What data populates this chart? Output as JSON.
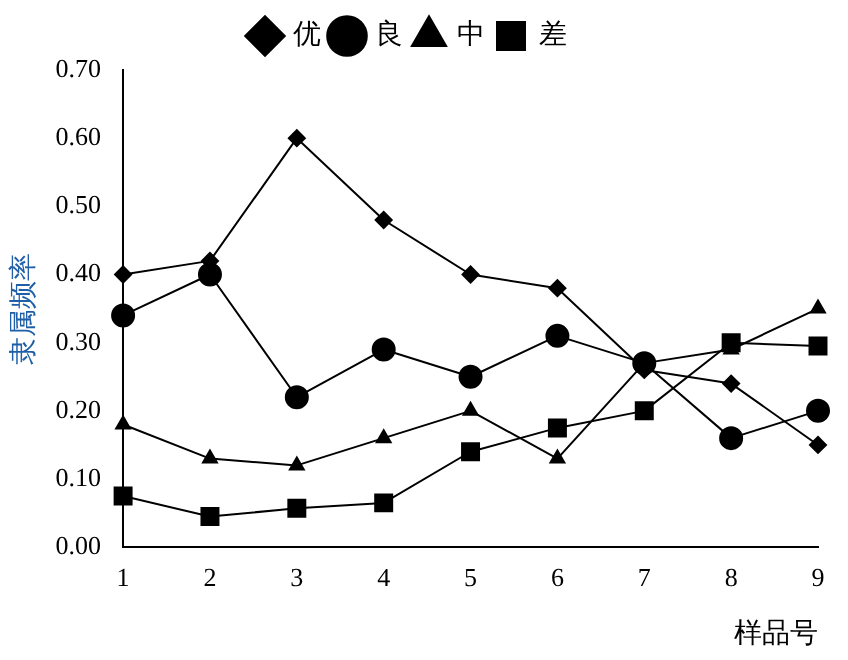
{
  "chart_data": {
    "type": "line",
    "xlabel": "样品号",
    "ylabel": "隶属频率",
    "categories": [
      "1",
      "2",
      "3",
      "4",
      "5",
      "6",
      "7",
      "8",
      "9"
    ],
    "series": [
      {
        "name": "优",
        "color": "#000000",
        "marker": "diamond",
        "values": [
          0.4,
          0.42,
          0.6,
          0.48,
          0.4,
          0.38,
          0.26,
          0.24,
          0.15
        ]
      },
      {
        "name": "良",
        "color": "#000000",
        "marker": "circle",
        "values": [
          0.34,
          0.4,
          0.22,
          0.29,
          0.25,
          0.31,
          0.27,
          0.16,
          0.2
        ]
      },
      {
        "name": "中",
        "color": "#000000",
        "marker": "triangle",
        "values": [
          0.18,
          0.13,
          0.12,
          0.16,
          0.2,
          0.13,
          0.27,
          0.29,
          0.35
        ]
      },
      {
        "name": "差",
        "color": "#000000",
        "marker": "square",
        "values": [
          0.075,
          0.045,
          0.057,
          0.065,
          0.14,
          0.175,
          0.2,
          0.3,
          0.295
        ]
      }
    ],
    "ylim": [
      0,
      0.7
    ],
    "yticks": [
      {
        "value": 0,
        "label": "0.00"
      },
      {
        "value": 0.1,
        "label": "0.10"
      },
      {
        "value": 0.2,
        "label": "0.20"
      },
      {
        "value": 0.3,
        "label": "0.30"
      },
      {
        "value": 0.4,
        "label": "0.40"
      },
      {
        "value": 0.5,
        "label": "0.50"
      },
      {
        "value": 0.6,
        "label": "0.60"
      },
      {
        "value": 0.7,
        "label": "0.70"
      }
    ],
    "grid": false,
    "legend": "top",
    "line_style": "solid"
  }
}
